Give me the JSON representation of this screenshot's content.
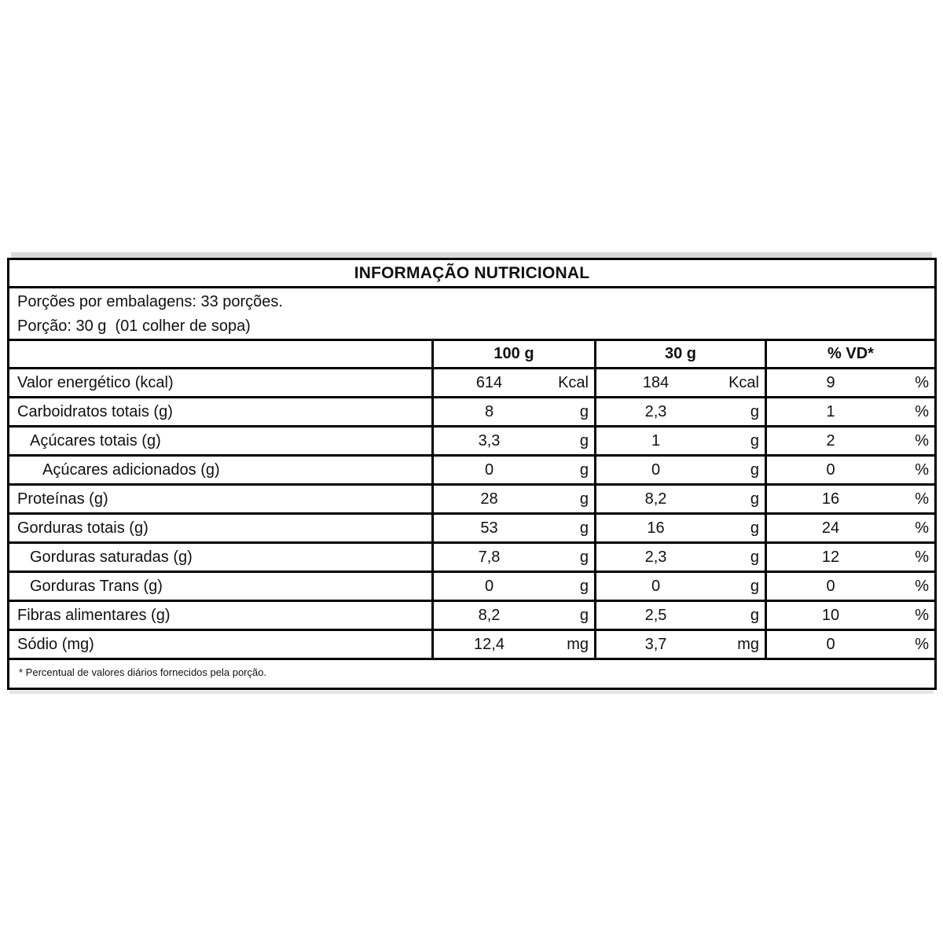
{
  "table": {
    "title": "INFORMAÇÃO NUTRICIONAL",
    "serving_info": {
      "line1": "Porções por embalagens: 33 porções.",
      "line2": "Porção: 30 g  (01 colher de sopa)"
    },
    "column_headers": [
      "100 g",
      "30 g",
      "% VD*"
    ],
    "rows": [
      {
        "label": "Valor energético (kcal)",
        "indent": 0,
        "per100": {
          "value": "614",
          "unit": "Kcal"
        },
        "per30": {
          "value": "184",
          "unit": "Kcal"
        },
        "vd": {
          "value": "9",
          "unit": "%"
        }
      },
      {
        "label": "Carboidratos totais (g)",
        "indent": 0,
        "per100": {
          "value": "8",
          "unit": "g"
        },
        "per30": {
          "value": "2,3",
          "unit": "g"
        },
        "vd": {
          "value": "1",
          "unit": "%"
        }
      },
      {
        "label": "Açúcares totais (g)",
        "indent": 1,
        "per100": {
          "value": "3,3",
          "unit": "g"
        },
        "per30": {
          "value": "1",
          "unit": "g"
        },
        "vd": {
          "value": "2",
          "unit": "%"
        }
      },
      {
        "label": "Açúcares adicionados (g)",
        "indent": 2,
        "per100": {
          "value": "0",
          "unit": "g"
        },
        "per30": {
          "value": "0",
          "unit": "g"
        },
        "vd": {
          "value": "0",
          "unit": "%"
        }
      },
      {
        "label": "Proteínas (g)",
        "indent": 0,
        "per100": {
          "value": "28",
          "unit": "g"
        },
        "per30": {
          "value": "8,2",
          "unit": "g"
        },
        "vd": {
          "value": "16",
          "unit": "%"
        }
      },
      {
        "label": "Gorduras totais (g)",
        "indent": 0,
        "per100": {
          "value": "53",
          "unit": "g"
        },
        "per30": {
          "value": "16",
          "unit": "g"
        },
        "vd": {
          "value": "24",
          "unit": "%"
        }
      },
      {
        "label": "Gorduras saturadas (g)",
        "indent": 1,
        "per100": {
          "value": "7,8",
          "unit": "g"
        },
        "per30": {
          "value": "2,3",
          "unit": "g"
        },
        "vd": {
          "value": "12",
          "unit": "%"
        }
      },
      {
        "label": "Gorduras Trans (g)",
        "indent": 1,
        "per100": {
          "value": "0",
          "unit": "g"
        },
        "per30": {
          "value": "0",
          "unit": "g"
        },
        "vd": {
          "value": "0",
          "unit": "%"
        }
      },
      {
        "label": "Fibras alimentares (g)",
        "indent": 0,
        "per100": {
          "value": "8,2",
          "unit": "g"
        },
        "per30": {
          "value": "2,5",
          "unit": "g"
        },
        "vd": {
          "value": "10",
          "unit": "%"
        }
      },
      {
        "label": "Sódio (mg)",
        "indent": 0,
        "per100": {
          "value": "12,4",
          "unit": "mg"
        },
        "per30": {
          "value": "3,7",
          "unit": "mg"
        },
        "vd": {
          "value": "0",
          "unit": "%"
        }
      }
    ],
    "footnote": "* Percentual de valores diários fornecidos pela porção.",
    "colors": {
      "border": "#000000",
      "text": "#111111",
      "scan_bar": "#d9d9d9"
    }
  }
}
